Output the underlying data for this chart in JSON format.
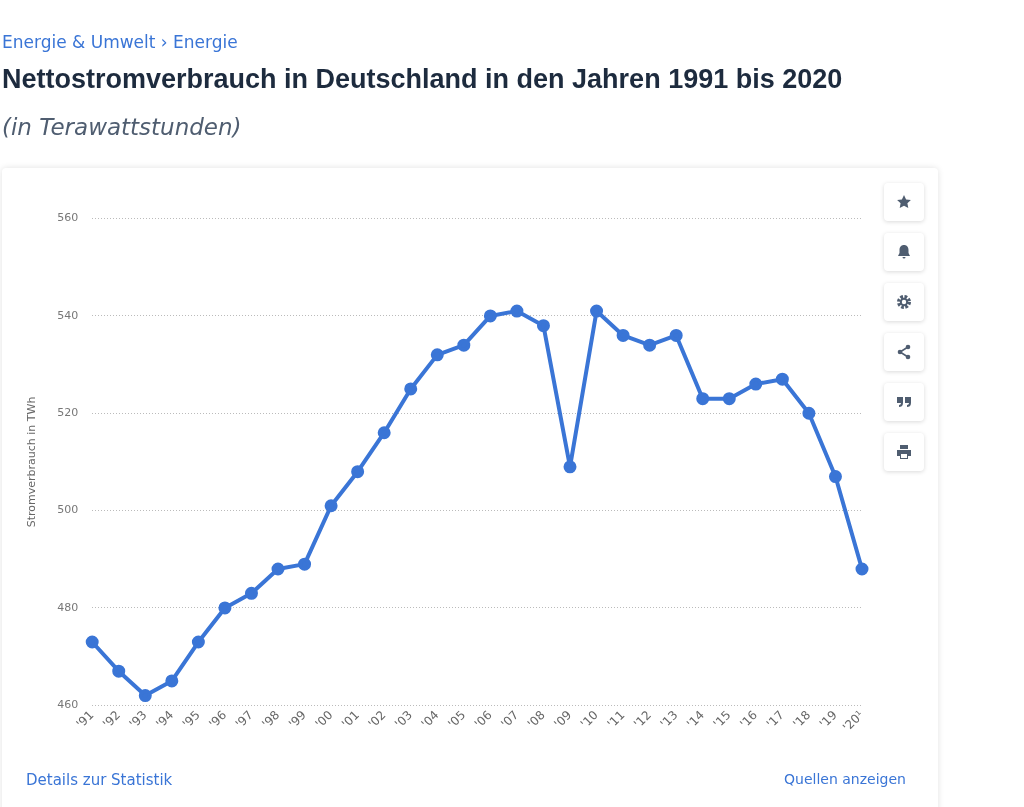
{
  "chart_data": {
    "type": "line",
    "title": "Nettostromverbrauch in Deutschland in den Jahren 1991 bis 2020",
    "subtitle": "(in Terawattstunden)",
    "ylabel": "Stromverbrauch in TWh",
    "categories": [
      "'91",
      "'92",
      "'93",
      "'94",
      "'95",
      "'96",
      "'97",
      "'98",
      "'99",
      "'00",
      "'01",
      "'02",
      "'03",
      "'04",
      "'05",
      "'06",
      "'07",
      "'08",
      "'09",
      "'10",
      "'11",
      "'12",
      "'13",
      "'14",
      "'15",
      "'16",
      "'17",
      "'18",
      "'19",
      "'20¹"
    ],
    "series": [
      {
        "color": "#3a75d6",
        "values": [
          473,
          467,
          462,
          465,
          473,
          480,
          483,
          488,
          489,
          501,
          508,
          516,
          525,
          532,
          534,
          540,
          541,
          538,
          509,
          541,
          536,
          534,
          536,
          523,
          523,
          526,
          527,
          520,
          507,
          488
        ]
      }
    ],
    "ylim": [
      460,
      560
    ],
    "yticks": [
      460,
      480,
      500,
      520,
      540,
      560
    ],
    "grid": "y",
    "marker": "circle",
    "line_style": "solid",
    "annotations": [
      "Energie & Umwelt › Energie",
      "Details zur Statistik",
      "Quellen anzeigen"
    ]
  }
}
